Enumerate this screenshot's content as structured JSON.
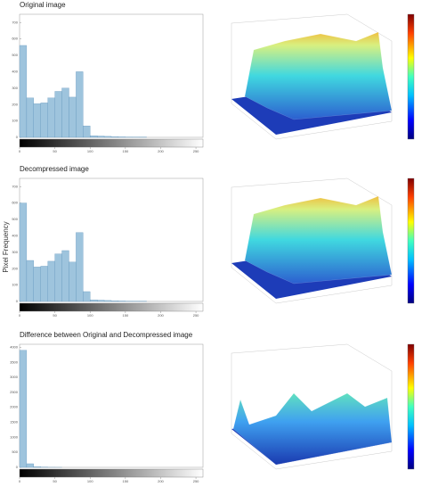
{
  "y_label": "Pixel Frequency",
  "chart_data": [
    {
      "type": "histogram",
      "title": "Original image",
      "color": "#9ec4dd",
      "bins": [
        0,
        10,
        20,
        30,
        40,
        50,
        60,
        70,
        80,
        90,
        100,
        110,
        120,
        130,
        140,
        150,
        160,
        170,
        180,
        190,
        200,
        210,
        220,
        230,
        240,
        250,
        260
      ],
      "counts": [
        560,
        240,
        205,
        210,
        240,
        280,
        300,
        245,
        400,
        70,
        10,
        8,
        6,
        4,
        3,
        2,
        1,
        1,
        0,
        0,
        0,
        0,
        0,
        0,
        0,
        0
      ],
      "xlim": [
        0,
        260
      ],
      "xticks": [
        0,
        50,
        100,
        150,
        200,
        250
      ],
      "ylim": [
        0,
        750
      ],
      "yticks": [
        0,
        100,
        200,
        300,
        400,
        500,
        600,
        700
      ]
    },
    {
      "type": "histogram",
      "title": "Decompressed image",
      "color": "#9ec4dd",
      "bins": [
        0,
        10,
        20,
        30,
        40,
        50,
        60,
        70,
        80,
        90,
        100,
        110,
        120,
        130,
        140,
        150,
        160,
        170,
        180,
        190,
        200,
        210,
        220,
        230,
        240,
        250,
        260
      ],
      "counts": [
        600,
        250,
        210,
        215,
        245,
        290,
        310,
        240,
        420,
        60,
        10,
        8,
        6,
        4,
        3,
        2,
        1,
        1,
        0,
        0,
        0,
        0,
        0,
        0,
        0,
        0
      ],
      "xlim": [
        0,
        260
      ],
      "xticks": [
        0,
        50,
        100,
        150,
        200,
        250
      ],
      "ylim": [
        0,
        750
      ],
      "yticks": [
        0,
        100,
        200,
        300,
        400,
        500,
        600,
        700
      ]
    },
    {
      "type": "histogram",
      "title": "Difference between Original and Decompressed image",
      "color": "#9ec4dd",
      "bins": [
        0,
        10,
        20,
        30,
        40,
        50,
        60,
        70,
        80,
        90,
        100,
        110,
        120,
        130,
        140,
        150,
        160,
        170,
        180,
        190,
        200,
        210,
        220,
        230,
        240,
        250,
        260
      ],
      "counts": [
        3900,
        120,
        20,
        5,
        2,
        1,
        0,
        0,
        0,
        0,
        0,
        0,
        0,
        0,
        0,
        0,
        0,
        0,
        0,
        0,
        0,
        0,
        0,
        0,
        0,
        0
      ],
      "xlim": [
        0,
        260
      ],
      "xticks": [
        0,
        50,
        100,
        150,
        200,
        250
      ],
      "ylim": [
        0,
        4100
      ],
      "yticks": [
        0,
        500,
        1000,
        1500,
        2000,
        2500,
        3000,
        3500,
        4000
      ]
    }
  ]
}
